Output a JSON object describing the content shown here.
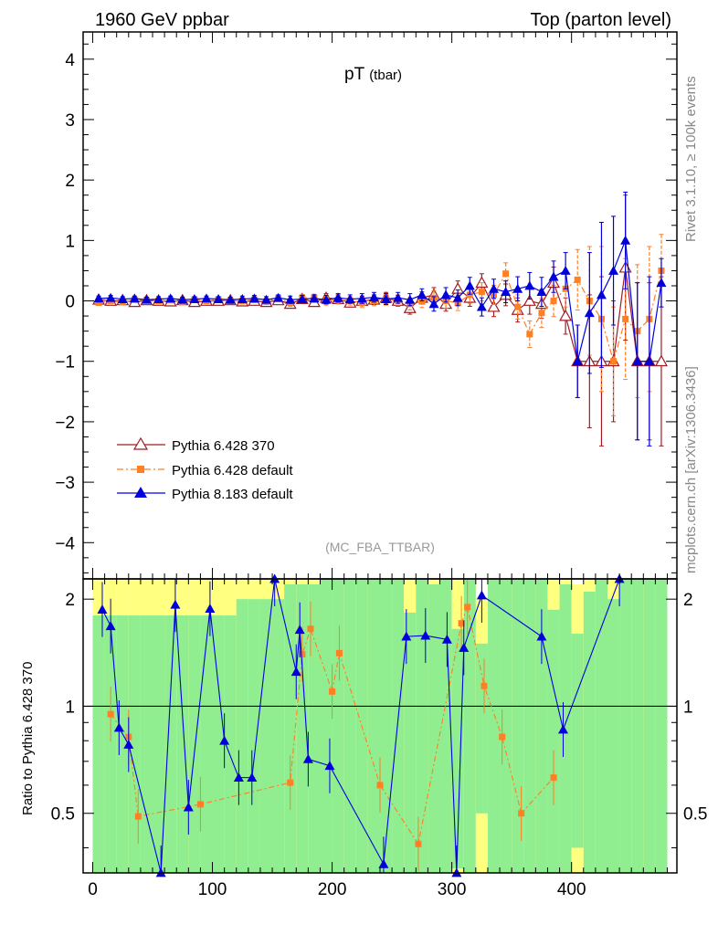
{
  "header": {
    "left": "1960 GeV ppbar",
    "right": "Top (parton level)"
  },
  "side_labels": {
    "rivet": "Rivet 3.1.10, ≥ 100k events",
    "mcplots": "mcplots.cern.ch [arXiv:1306.3436]"
  },
  "chart_data": {
    "type": "scatter",
    "title": "pT",
    "title_sub": "(tbar)",
    "analysis": "(MC_FBA_TTBAR)",
    "ratio_ylabel": "Ratio to Pythia 6.428 370",
    "xlim": [
      -8,
      488
    ],
    "ylim": [
      -4.6,
      4.45
    ],
    "ratio_ylim": [
      0.34,
      2.28
    ],
    "x_ticks": [
      0,
      100,
      200,
      300,
      400
    ],
    "x_tick_labels": [
      "0",
      "100",
      "200",
      "300",
      "400"
    ],
    "y_ticks": [
      -4,
      -3,
      -2,
      -1,
      0,
      1,
      2,
      3,
      4
    ],
    "y_tick_labels": [
      "−4",
      "−3",
      "−2",
      "−1",
      "0",
      "1",
      "2",
      "3",
      "4"
    ],
    "ratio_ticks": [
      0.5,
      1,
      2
    ],
    "ratio_tick_labels": [
      "0.5",
      "1",
      "2"
    ],
    "series": [
      {
        "name": "Pythia 6.428 370",
        "color": "#a01c22",
        "marker": "open-triangle",
        "line": "solid",
        "x": [
          5,
          15,
          25,
          35,
          45,
          55,
          65,
          75,
          85,
          95,
          105,
          115,
          125,
          135,
          145,
          155,
          165,
          175,
          185,
          195,
          205,
          215,
          225,
          235,
          245,
          255,
          265,
          275,
          285,
          295,
          305,
          315,
          325,
          335,
          345,
          355,
          365,
          375,
          385,
          395,
          405,
          415,
          425,
          435,
          445,
          455,
          465,
          475
        ],
        "y": [
          0.02,
          0.0,
          0.01,
          -0.02,
          0.01,
          0.0,
          -0.01,
          0.01,
          -0.02,
          0.0,
          0.0,
          0.01,
          -0.01,
          0.0,
          -0.02,
          0.01,
          -0.05,
          0.03,
          -0.02,
          0.05,
          0.03,
          -0.03,
          0.0,
          0.02,
          0.05,
          0.0,
          -0.12,
          0.05,
          0.1,
          -0.05,
          0.2,
          0.05,
          0.3,
          -0.1,
          0.1,
          -0.15,
          0.0,
          -0.05,
          0.3,
          -0.25,
          -1.0,
          -1.0,
          -1.0,
          -1.0,
          0.55,
          -1.0,
          -1.0,
          -1.0
        ],
        "err": [
          0.04,
          0.04,
          0.04,
          0.04,
          0.04,
          0.04,
          0.04,
          0.04,
          0.04,
          0.04,
          0.04,
          0.04,
          0.05,
          0.05,
          0.05,
          0.05,
          0.06,
          0.06,
          0.06,
          0.07,
          0.07,
          0.07,
          0.08,
          0.08,
          0.09,
          0.09,
          0.1,
          0.1,
          0.12,
          0.12,
          0.13,
          0.14,
          0.15,
          0.16,
          0.18,
          0.2,
          0.22,
          0.24,
          0.26,
          0.3,
          0.6,
          1.1,
          1.4,
          1.0,
          1.2,
          1.3,
          1.3,
          1.4
        ]
      },
      {
        "name": "Pythia 6.428 default",
        "color": "#ff7f24",
        "marker": "square",
        "line": "dashdot",
        "x": [
          5,
          15,
          25,
          35,
          45,
          55,
          65,
          75,
          85,
          95,
          105,
          115,
          125,
          135,
          145,
          155,
          165,
          175,
          185,
          195,
          205,
          215,
          225,
          235,
          245,
          255,
          265,
          275,
          285,
          295,
          305,
          315,
          325,
          335,
          345,
          355,
          365,
          375,
          385,
          395,
          405,
          415,
          425,
          435,
          445,
          455,
          465,
          475
        ],
        "y": [
          -0.03,
          0.0,
          -0.02,
          0.02,
          0.01,
          0.0,
          0.01,
          -0.02,
          0.02,
          0.0,
          0.02,
          0.0,
          0.0,
          0.02,
          -0.01,
          0.04,
          -0.03,
          0.05,
          0.05,
          0.0,
          0.02,
          0.0,
          -0.03,
          0.0,
          0.02,
          0.01,
          -0.05,
          -0.01,
          0.05,
          0.0,
          -0.03,
          0.1,
          0.15,
          0.1,
          0.45,
          -0.1,
          -0.55,
          -0.2,
          0.0,
          0.2,
          0.35,
          0.0,
          -0.3,
          -1.0,
          -0.3,
          -0.5,
          -0.3,
          0.5
        ],
        "err": [
          0.04,
          0.04,
          0.04,
          0.04,
          0.04,
          0.04,
          0.04,
          0.04,
          0.04,
          0.04,
          0.04,
          0.04,
          0.05,
          0.05,
          0.05,
          0.05,
          0.06,
          0.06,
          0.06,
          0.07,
          0.07,
          0.07,
          0.08,
          0.08,
          0.09,
          0.09,
          0.1,
          0.1,
          0.12,
          0.12,
          0.13,
          0.14,
          0.15,
          0.16,
          0.18,
          0.2,
          0.22,
          0.24,
          0.26,
          0.3,
          0.5,
          0.9,
          1.2,
          0.9,
          1.0,
          1.1,
          1.2,
          0.6
        ]
      },
      {
        "name": "Pythia 8.183 default",
        "color": "#0000dd",
        "marker": "filled-triangle",
        "line": "solid",
        "x": [
          5,
          15,
          25,
          35,
          45,
          55,
          65,
          75,
          85,
          95,
          105,
          115,
          125,
          135,
          145,
          155,
          165,
          175,
          185,
          195,
          205,
          215,
          225,
          235,
          245,
          255,
          265,
          275,
          285,
          295,
          305,
          315,
          325,
          335,
          345,
          355,
          365,
          375,
          385,
          395,
          405,
          415,
          425,
          435,
          445,
          455,
          465,
          475
        ],
        "y": [
          0.04,
          0.05,
          0.03,
          0.04,
          0.02,
          0.03,
          0.04,
          0.02,
          0.03,
          0.04,
          0.03,
          0.02,
          0.03,
          0.04,
          0.02,
          0.05,
          0.02,
          0.03,
          0.04,
          0.02,
          0.05,
          0.03,
          0.04,
          0.06,
          0.03,
          0.05,
          0.02,
          0.1,
          -0.05,
          0.1,
          0.05,
          0.25,
          -0.1,
          0.2,
          0.15,
          0.2,
          0.25,
          0.15,
          0.4,
          0.5,
          -1.0,
          -0.2,
          0.1,
          0.5,
          1.0,
          -1.0,
          -1.0,
          0.3
        ],
        "err": [
          0.04,
          0.04,
          0.04,
          0.04,
          0.04,
          0.04,
          0.04,
          0.04,
          0.04,
          0.04,
          0.04,
          0.04,
          0.05,
          0.05,
          0.05,
          0.05,
          0.06,
          0.06,
          0.06,
          0.07,
          0.07,
          0.07,
          0.08,
          0.08,
          0.09,
          0.09,
          0.1,
          0.1,
          0.12,
          0.12,
          0.13,
          0.14,
          0.15,
          0.16,
          0.18,
          0.2,
          0.22,
          0.24,
          0.26,
          0.3,
          0.6,
          1.0,
          1.2,
          0.9,
          0.8,
          1.3,
          1.4,
          0.4
        ]
      }
    ],
    "ratio_series": [
      {
        "name": "Pythia 6.428 default",
        "x": [
          15,
          30,
          38,
          90,
          165,
          175,
          182,
          200,
          206,
          240,
          272,
          308,
          313,
          327,
          342,
          358,
          385
        ],
        "y": [
          0.95,
          0.82,
          0.49,
          0.53,
          0.61,
          1.4,
          1.65,
          1.1,
          1.41,
          0.6,
          0.41,
          1.71,
          1.9,
          1.14,
          0.82,
          0.5,
          0.63
        ]
      },
      {
        "name": "Pythia 8.183 default",
        "x": [
          8,
          15,
          22,
          30,
          57,
          69,
          80,
          98,
          110,
          122,
          133,
          152,
          170,
          173,
          180,
          198,
          243,
          262,
          278,
          296,
          304,
          310,
          325,
          375,
          393,
          440
        ],
        "y": [
          1.87,
          1.68,
          0.87,
          0.78,
          0.34,
          1.93,
          0.52,
          1.88,
          0.8,
          0.63,
          0.63,
          2.28,
          1.25,
          1.64,
          0.71,
          0.68,
          0.36,
          1.57,
          1.58,
          1.54,
          0.29,
          1.46,
          2.05,
          1.57,
          0.86,
          2.28
        ]
      }
    ]
  }
}
